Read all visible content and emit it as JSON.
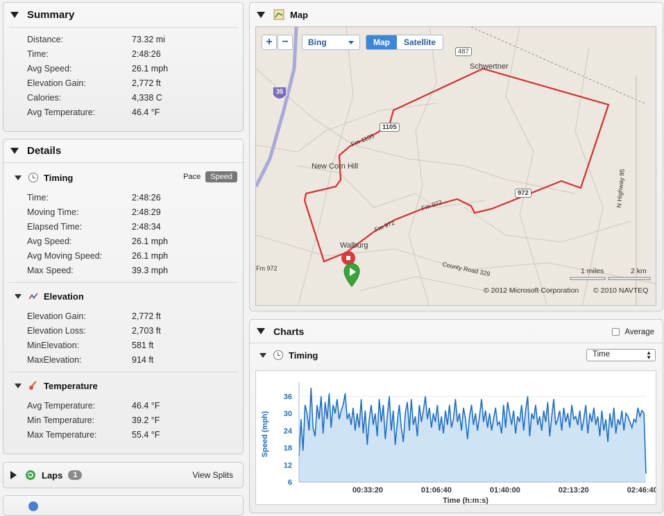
{
  "summary": {
    "title": "Summary",
    "rows": [
      {
        "label": "Distance:",
        "value": "73.32 mi"
      },
      {
        "label": "Time:",
        "value": "2:48:26"
      },
      {
        "label": "Avg Speed:",
        "value": "26.1 mph"
      },
      {
        "label": "Elevation Gain:",
        "value": "2,772 ft"
      },
      {
        "label": "Calories:",
        "value": "4,338 C"
      },
      {
        "label": "Avg Temperature:",
        "value": "46.4 °F"
      }
    ]
  },
  "details": {
    "title": "Details",
    "timing": {
      "title": "Timing",
      "toggle": {
        "pace": "Pace",
        "speed": "Speed",
        "selected": "Speed"
      },
      "rows": [
        {
          "label": "Time:",
          "value": "2:48:26"
        },
        {
          "label": "Moving Time:",
          "value": "2:48:29"
        },
        {
          "label": "Elapsed Time:",
          "value": "2:48:34"
        },
        {
          "label": "Avg Speed:",
          "value": "26.1 mph"
        },
        {
          "label": "Avg Moving Speed:",
          "value": "26.1 mph"
        },
        {
          "label": "Max Speed:",
          "value": "39.3 mph"
        }
      ]
    },
    "elevation": {
      "title": "Elevation",
      "rows": [
        {
          "label": "Elevation Gain:",
          "value": "2,772 ft"
        },
        {
          "label": "Elevation Loss:",
          "value": "2,703 ft"
        },
        {
          "label": "MinElevation:",
          "value": "581 ft"
        },
        {
          "label": "MaxElevation:",
          "value": "914 ft"
        }
      ]
    },
    "temperature": {
      "title": "Temperature",
      "rows": [
        {
          "label": "Avg Temperature:",
          "value": "46.4 °F"
        },
        {
          "label": "Min Temperature:",
          "value": "39.2 °F"
        },
        {
          "label": "Max Temperature:",
          "value": "55.4 °F"
        }
      ]
    }
  },
  "laps": {
    "title": "Laps",
    "count": "1",
    "view_splits": "View Splits"
  },
  "map": {
    "title": "Map",
    "zoom_in": "+",
    "zoom_out": "−",
    "provider": "Bing",
    "view_map": "Map",
    "view_satellite": "Satellite",
    "selected_view": "Map",
    "places": [
      "Schwertner",
      "New Corn Hill",
      "Walburg"
    ],
    "roads": [
      "487",
      "1105",
      "972",
      "Fm 1105",
      "Fm 972",
      "Fm 972",
      "Fm 972",
      "County Road 329",
      "N Highway 95",
      "35"
    ],
    "scale": {
      "miles": "1 miles",
      "km": "2 km"
    },
    "copyright_ms": "© 2012 Microsoft Corporation",
    "copyright_navteq": "© 2010 NAVTEQ"
  },
  "charts": {
    "title": "Charts",
    "average_label": "Average",
    "average_checked": false,
    "timing_title": "Timing",
    "x_axis_mode": "Time",
    "colors": {
      "line": "#1f6fbf",
      "fill": "#cfe3f7",
      "axis_text": "#1f6fbf"
    }
  },
  "chart_data": {
    "type": "area",
    "title": "",
    "xlabel": "Time (h:m:s)",
    "ylabel": "Speed (mph)",
    "x_tick_labels": [
      "00:33:20",
      "01:06:40",
      "01:40:00",
      "02:13:20",
      "02:46:40"
    ],
    "y_ticks": [
      6,
      12,
      18,
      24,
      30,
      36
    ],
    "ylim": [
      6,
      39.5
    ],
    "xlim_seconds": [
      0,
      10106
    ],
    "series": [
      {
        "values": [
          15,
          28,
          17,
          33,
          30,
          24,
          39,
          25,
          22,
          33,
          28,
          36,
          23,
          34,
          28,
          37,
          25,
          33,
          30,
          35,
          28,
          31,
          33,
          37,
          28,
          30,
          26,
          32,
          24,
          30,
          25,
          35,
          23,
          31,
          19,
          28,
          33,
          26,
          30,
          22,
          35,
          27,
          33,
          21,
          29,
          36,
          24,
          31,
          19,
          27,
          33,
          25,
          20,
          30,
          34,
          24,
          35,
          26,
          29,
          22,
          33,
          27,
          31,
          36,
          28,
          32,
          25,
          30,
          27,
          33,
          24,
          29,
          23,
          31,
          26,
          33,
          25,
          28,
          35,
          27,
          30,
          24,
          32,
          28,
          21,
          29,
          33,
          26,
          30,
          24,
          29,
          35,
          27,
          31,
          25,
          30,
          24,
          28,
          32,
          26,
          27,
          23,
          33,
          25,
          34,
          30,
          26,
          31,
          23,
          29,
          27,
          33,
          24,
          31,
          36,
          22,
          30,
          28,
          33,
          26,
          29,
          24,
          31,
          27,
          34,
          22,
          29,
          35,
          26,
          28,
          31,
          24,
          32,
          27,
          30,
          25,
          33,
          28,
          29,
          26,
          31,
          24,
          28,
          33,
          23,
          30,
          27,
          32,
          26,
          29,
          22,
          31,
          24,
          28,
          20,
          30,
          25,
          32,
          23,
          28,
          26,
          31,
          24,
          30,
          29,
          27,
          25,
          28,
          27,
          32,
          29,
          31,
          30,
          9
        ]
      }
    ]
  }
}
